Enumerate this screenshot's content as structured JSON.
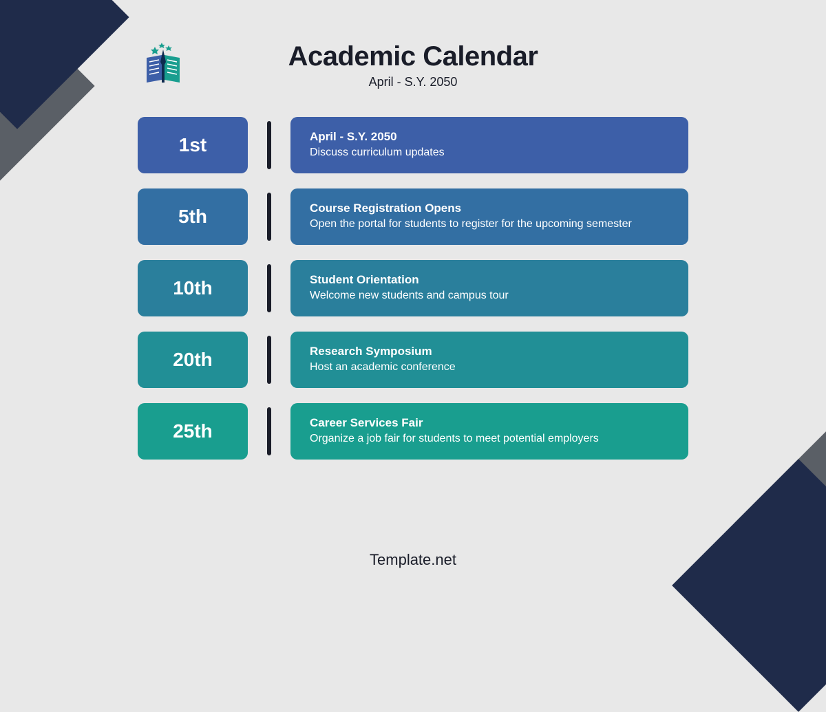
{
  "header": {
    "title": "Academic Calendar",
    "subtitle": "April - S.Y. 2050"
  },
  "footer": "Template.net",
  "colors": {
    "background": "#e8e8e8",
    "corner_navy": "#1f2b4a",
    "corner_gray": "#5a5f66",
    "divider": "#1a1d29",
    "text": "#1a1d29"
  },
  "events": [
    {
      "date": "1st",
      "title": "April - S.Y. 2050",
      "desc": "Discuss curriculum updates",
      "color": "#3d5fa8"
    },
    {
      "date": "5th",
      "title": "Course Registration Opens",
      "desc": "Open the portal for students to register for the upcoming semester",
      "color": "#336fa3"
    },
    {
      "date": "10th",
      "title": "Student Orientation",
      "desc": "Welcome new students and campus tour",
      "color": "#2a7f9c"
    },
    {
      "date": "20th",
      "title": "Research Symposium",
      "desc": "Host an academic conference",
      "color": "#218f96"
    },
    {
      "date": "25th",
      "title": "Career Services Fair",
      "desc": "Organize a job fair for students to meet potential employers",
      "color": "#199e8f"
    }
  ],
  "logo": {
    "book_left": "#3d5fa8",
    "book_right": "#199e8f",
    "stars": "#199e8f",
    "pen": "#0e2a4f"
  }
}
